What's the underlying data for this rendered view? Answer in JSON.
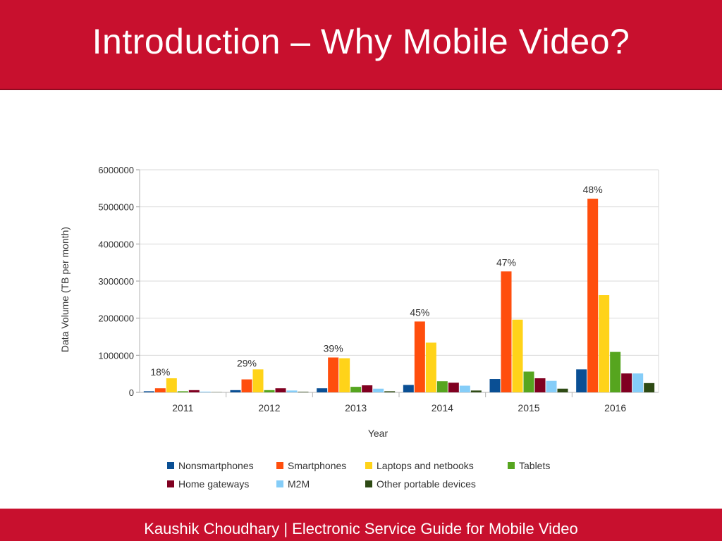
{
  "slide": {
    "title": "Introduction – Why Mobile Video?",
    "footer": "Kaushik Choudhary | Electronic Service Guide for Mobile Video",
    "accent_color": "#c8102e"
  },
  "chart_data": {
    "type": "bar",
    "title": "",
    "xlabel": "Year",
    "ylabel": "Data Volume (TB per month)",
    "ylim": [
      0,
      6000000
    ],
    "yticks": [
      "0",
      "1000000",
      "2000000",
      "3000000",
      "4000000",
      "5000000",
      "6000000"
    ],
    "grid": true,
    "legend_position": "bottom",
    "categories": [
      "2011",
      "2012",
      "2013",
      "2014",
      "2015",
      "2016"
    ],
    "series": [
      {
        "name": "Nonsmartphones",
        "color": "#0a4f94",
        "values": [
          30000,
          60000,
          110000,
          200000,
          360000,
          620000
        ]
      },
      {
        "name": "Smartphones",
        "color": "#ff4e0d",
        "values": [
          110000,
          350000,
          940000,
          1910000,
          3260000,
          5220000
        ]
      },
      {
        "name": "Laptops and netbooks",
        "color": "#ffd319",
        "values": [
          380000,
          620000,
          920000,
          1340000,
          1960000,
          2620000
        ]
      },
      {
        "name": "Tablets",
        "color": "#56a51f",
        "values": [
          30000,
          60000,
          150000,
          300000,
          560000,
          1090000
        ]
      },
      {
        "name": "Home gateways",
        "color": "#800021",
        "values": [
          60000,
          110000,
          190000,
          260000,
          380000,
          510000
        ]
      },
      {
        "name": "M2M",
        "color": "#85cdf8",
        "values": [
          20000,
          50000,
          100000,
          180000,
          310000,
          510000
        ]
      },
      {
        "name": "Other portable devices",
        "color": "#2e4a14",
        "values": [
          5000,
          15000,
          30000,
          50000,
          100000,
          250000
        ]
      }
    ],
    "annotations": [
      {
        "category": "2011",
        "text": "18%"
      },
      {
        "category": "2012",
        "text": "29%"
      },
      {
        "category": "2013",
        "text": "39%"
      },
      {
        "category": "2014",
        "text": "45%"
      },
      {
        "category": "2015",
        "text": "47%"
      },
      {
        "category": "2016",
        "text": "48%"
      }
    ]
  }
}
